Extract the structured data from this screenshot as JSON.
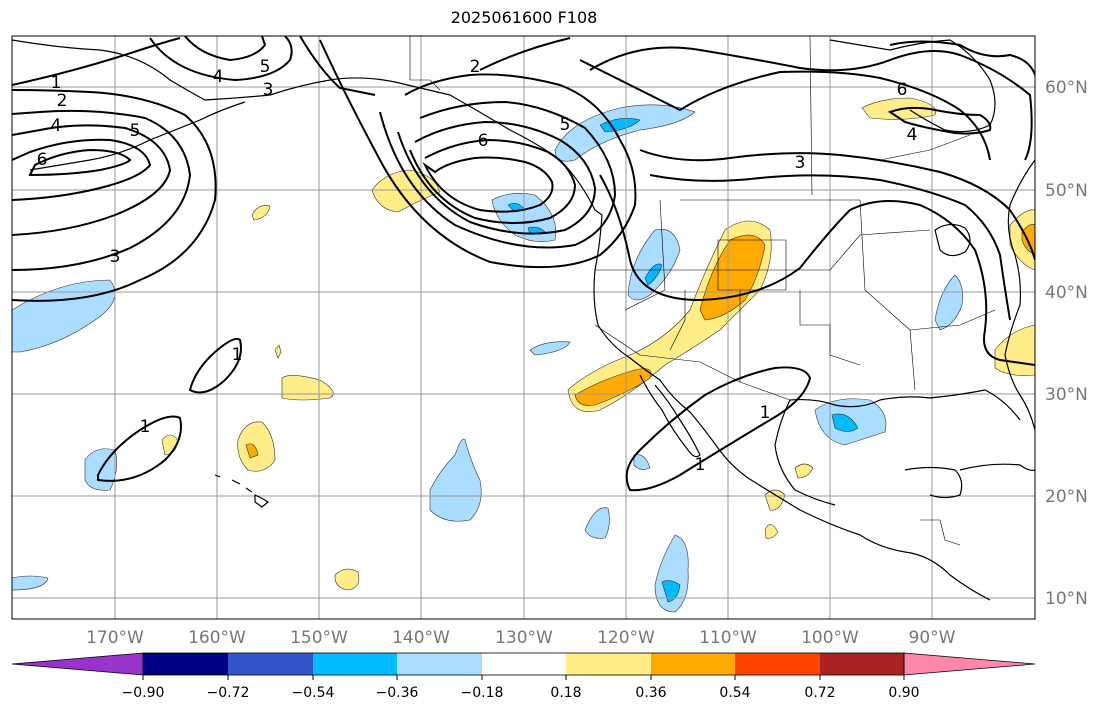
{
  "title": "2025061600 F108",
  "map": {
    "latitude_labels": [
      "60°N",
      "50°N",
      "40°N",
      "30°N",
      "20°N",
      "10°N"
    ],
    "longitude_labels": [
      "170°W",
      "160°W",
      "150°W",
      "140°W",
      "130°W",
      "120°W",
      "110°W",
      "100°W",
      "90°W"
    ],
    "contour_labels": [
      "1",
      "2",
      "4",
      "5",
      "6",
      "3",
      "4",
      "5",
      "2",
      "5",
      "6",
      "3",
      "6",
      "4",
      "1",
      "1",
      "1",
      "1",
      "3"
    ],
    "colors": {
      "land_outline": "#000000",
      "grid": "#999999",
      "contour": "#000000"
    }
  },
  "colorbar": {
    "tick_labels": [
      "−0.90",
      "−0.72",
      "−0.54",
      "−0.36",
      "−0.18",
      "0.18",
      "0.36",
      "0.54",
      "0.72",
      "0.90"
    ],
    "colors": [
      "#9933cc",
      "#000088",
      "#3355cc",
      "#00bbff",
      "#aaddff",
      "#ffffff",
      "#ffee88",
      "#ffaa00",
      "#ff4400",
      "#aa2222",
      "#ff88aa"
    ]
  }
}
